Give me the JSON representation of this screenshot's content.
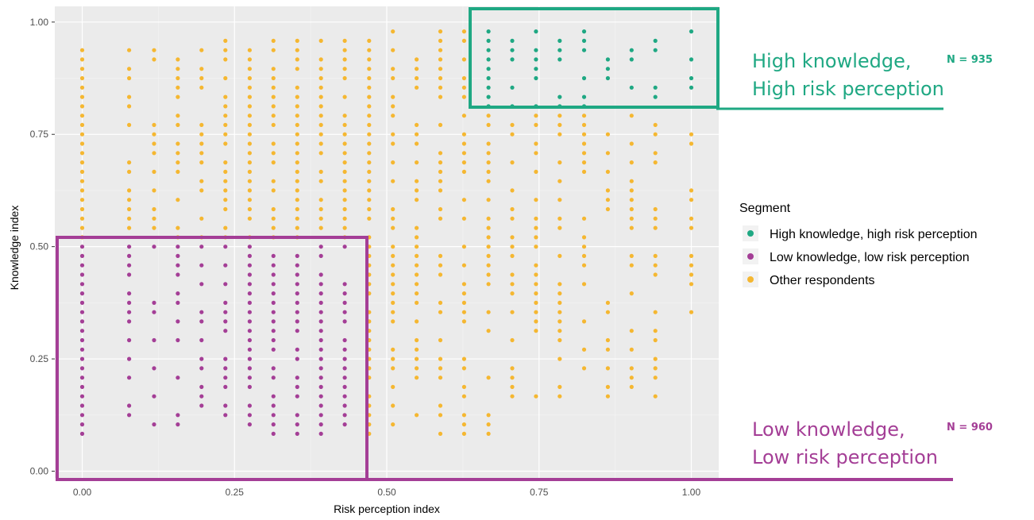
{
  "chart_data": {
    "type": "scatter",
    "xlabel": "Risk perception index",
    "ylabel": "Knowledge index",
    "xlim": [
      -0.045,
      1.045
    ],
    "ylim": [
      -0.015,
      1.035
    ],
    "x_ticks": [
      "0.00",
      "0.25",
      "0.50",
      "0.75",
      "1.00"
    ],
    "y_ticks": [
      "0.00",
      "0.25",
      "0.50",
      "0.75",
      "1.00"
    ],
    "grid": true,
    "legend": {
      "title": "Segment",
      "position": "right",
      "entries": [
        {
          "label": "High knowledge, high risk perception",
          "color": "#1fa883"
        },
        {
          "label": "Low knowledge, low risk perception",
          "color": "#a43e96"
        },
        {
          "label": "Other respondents",
          "color": "#f5b731"
        }
      ]
    },
    "segments": {
      "high": {
        "x_min": 0.65,
        "y_min": 0.8,
        "color": "#1fa883"
      },
      "low": {
        "x_max": 0.46,
        "y_max": 0.5,
        "color": "#a43e96"
      }
    },
    "x_levels": [
      0.0,
      0.077,
      0.118,
      0.157,
      0.196,
      0.235,
      0.275,
      0.314,
      0.353,
      0.392,
      0.431,
      0.471,
      0.51,
      0.549,
      0.588,
      0.627,
      0.667,
      0.706,
      0.745,
      0.784,
      0.824,
      0.863,
      0.902,
      0.941,
      1.0
    ],
    "series": [
      {
        "name": "High knowledge, high risk perception",
        "color": "#1fa883"
      },
      {
        "name": "Low knowledge, low risk perception",
        "color": "#a43e96"
      },
      {
        "name": "Other respondents",
        "color": "#f5b731"
      }
    ]
  },
  "annotations": {
    "high_box": {
      "label_line1": "High knowledge,",
      "label_line2": "High risk perception",
      "n_label": "N = 935",
      "color": "#1fa883"
    },
    "low_box": {
      "label_line1": "Low knowledge,",
      "label_line2": "Low risk perception",
      "n_label": "N = 960",
      "color": "#a43e96"
    }
  }
}
